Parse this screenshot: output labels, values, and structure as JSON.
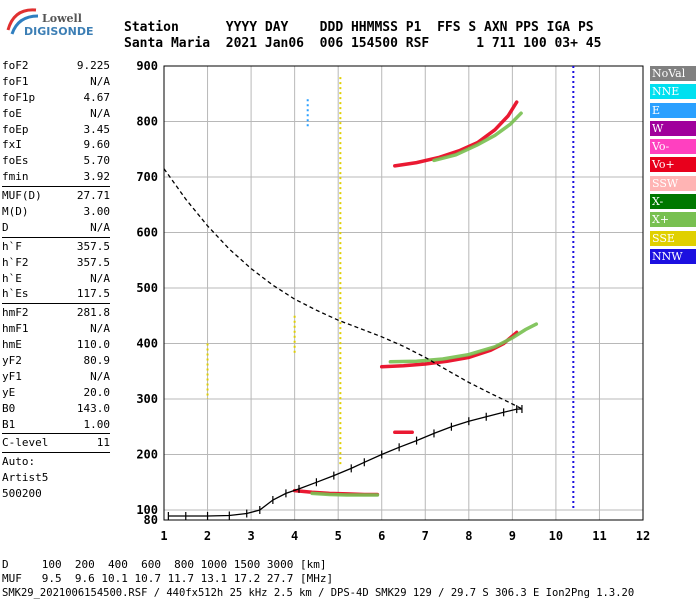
{
  "logo": {
    "line1": "Lowell",
    "line2": "DIGISONDE"
  },
  "header": {
    "line1": "Station      YYYY DAY    DDD HHMMSS P1  FFS S AXN PPS IGA PS",
    "line2": "Santa Maria  2021 Jan06  006 154500 RSF      1 711 100 03+ 45"
  },
  "params": [
    {
      "label": "foF2",
      "value": "9.225"
    },
    {
      "label": "foF1",
      "value": "N/A"
    },
    {
      "label": "foF1p",
      "value": "4.67"
    },
    {
      "label": "foE",
      "value": "N/A"
    },
    {
      "label": "foEp",
      "value": "3.45"
    },
    {
      "label": "fxI",
      "value": "9.60"
    },
    {
      "label": "foEs",
      "value": "5.70"
    },
    {
      "label": "fmin",
      "value": "3.92"
    },
    {
      "sep": true
    },
    {
      "label": "MUF(D)",
      "value": "27.71"
    },
    {
      "label": "M(D)",
      "value": "3.00"
    },
    {
      "label": "D",
      "value": "N/A"
    },
    {
      "sep": true
    },
    {
      "label": "h`F",
      "value": "357.5"
    },
    {
      "label": "h`F2",
      "value": "357.5"
    },
    {
      "label": "h`E",
      "value": "N/A"
    },
    {
      "label": "h`Es",
      "value": "117.5"
    },
    {
      "sep": true
    },
    {
      "label": "hmF2",
      "value": "281.8"
    },
    {
      "label": "hmF1",
      "value": "N/A"
    },
    {
      "label": "hmE",
      "value": "110.0"
    },
    {
      "label": "yF2",
      "value": "80.9"
    },
    {
      "label": "yF1",
      "value": "N/A"
    },
    {
      "label": "yE",
      "value": "20.0"
    },
    {
      "label": "B0",
      "value": "143.0"
    },
    {
      "label": "B1",
      "value": "1.00"
    },
    {
      "sep": true
    },
    {
      "label": "C-level",
      "value": "11"
    },
    {
      "sep": true
    },
    {
      "text": "Auto:"
    },
    {
      "text": "Artist5"
    },
    {
      "text": "500200"
    }
  ],
  "legend": [
    {
      "label": "NoVal",
      "color": "#808080"
    },
    {
      "label": "NNE",
      "color": "#00e0f0"
    },
    {
      "label": "E",
      "color": "#2aa0ff"
    },
    {
      "label": "W",
      "color": "#a0009c"
    },
    {
      "label": "Vo-",
      "color": "#ff40c0"
    },
    {
      "label": "Vo+",
      "color": "#e8001c"
    },
    {
      "label": "SSW",
      "color": "#ffb4b4"
    },
    {
      "label": "X-",
      "color": "#007800"
    },
    {
      "label": "X+",
      "color": "#78c050"
    },
    {
      "label": "SSE",
      "color": "#e0d000"
    },
    {
      "label": "NNW",
      "color": "#1c10e0"
    }
  ],
  "footer": {
    "line1": "D     100  200  400  600  800 1000 1500 3000 [km]",
    "line2": "MUF   9.5  9.6 10.1 10.7 11.7 13.1 17.2 27.7 [MHz]",
    "line3": "SMK29_2021006154500.RSF / 440fx512h 25 kHz 2.5 km / DPS-4D SMK29 129 / 29.7 S 306.3 E Ion2Png 1.3.20"
  },
  "chart_data": {
    "type": "scatter",
    "x_ticks": [
      "1",
      "2",
      "3",
      "4",
      "5",
      "6",
      "7",
      "8",
      "9",
      "10",
      "11",
      "12"
    ],
    "y_ticks": [
      "80",
      "100",
      "200",
      "300",
      "400",
      "500",
      "600",
      "700",
      "800",
      "900"
    ],
    "xlim": [
      1,
      12
    ],
    "ylim": [
      80,
      900
    ],
    "grid": true,
    "colors": {
      "Vo+": "#e8001c",
      "X+": "#78c050",
      "W": "#a0009c",
      "X-": "#007800",
      "E": "#2aa0ff",
      "NNW": "#1c10e0",
      "SSE": "#e0d000",
      "profile": "#000000"
    },
    "series": [
      {
        "name": "Vo+",
        "points": [
          [
            6.0,
            358
          ],
          [
            6.5,
            360
          ],
          [
            7.0,
            363
          ],
          [
            7.5,
            368
          ],
          [
            8.0,
            375
          ],
          [
            8.5,
            388
          ],
          [
            8.8,
            400
          ],
          [
            9.1,
            420
          ]
        ]
      },
      {
        "name": "X+",
        "points": [
          [
            6.2,
            367
          ],
          [
            6.8,
            368
          ],
          [
            7.4,
            372
          ],
          [
            8.0,
            380
          ],
          [
            8.6,
            394
          ],
          [
            9.0,
            410
          ],
          [
            9.3,
            425
          ],
          [
            9.55,
            435
          ]
        ]
      },
      {
        "name": "Vo+",
        "points": [
          [
            6.3,
            720
          ],
          [
            6.8,
            726
          ],
          [
            7.3,
            735
          ],
          [
            7.8,
            748
          ],
          [
            8.2,
            762
          ],
          [
            8.6,
            785
          ],
          [
            8.9,
            810
          ],
          [
            9.1,
            835
          ]
        ]
      },
      {
        "name": "X+",
        "points": [
          [
            7.2,
            730
          ],
          [
            7.7,
            740
          ],
          [
            8.2,
            758
          ],
          [
            8.6,
            775
          ],
          [
            8.95,
            795
          ],
          [
            9.2,
            815
          ]
        ]
      },
      {
        "name": "Vo+",
        "points": [
          [
            4.0,
            135
          ],
          [
            4.4,
            132
          ],
          [
            4.8,
            130
          ],
          [
            5.2,
            129
          ],
          [
            5.6,
            128
          ],
          [
            5.9,
            128
          ]
        ]
      },
      {
        "name": "X+",
        "points": [
          [
            4.4,
            130
          ],
          [
            4.8,
            128
          ],
          [
            5.2,
            127
          ],
          [
            5.6,
            127
          ],
          [
            5.9,
            127
          ]
        ]
      },
      {
        "name": "Vo+",
        "points": [
          [
            6.3,
            240
          ],
          [
            6.5,
            240
          ],
          [
            6.7,
            240
          ]
        ]
      }
    ],
    "trace_profile": [
      [
        1.1,
        88
      ],
      [
        1.5,
        88
      ],
      [
        2.0,
        88
      ],
      [
        2.5,
        89
      ],
      [
        2.9,
        93
      ],
      [
        3.2,
        100
      ],
      [
        3.5,
        118
      ],
      [
        3.8,
        130
      ],
      [
        4.1,
        138
      ],
      [
        4.5,
        150
      ],
      [
        4.9,
        162
      ],
      [
        5.3,
        175
      ],
      [
        5.6,
        186
      ],
      [
        6.0,
        200
      ],
      [
        6.4,
        213
      ],
      [
        6.8,
        225
      ],
      [
        7.2,
        238
      ],
      [
        7.6,
        250
      ],
      [
        8.0,
        260
      ],
      [
        8.4,
        268
      ],
      [
        8.8,
        276
      ],
      [
        9.1,
        281.8
      ],
      [
        9.22,
        282
      ]
    ],
    "true_height_profile": [
      [
        1.0,
        715
      ],
      [
        1.5,
        660
      ],
      [
        2.0,
        612
      ],
      [
        2.5,
        570
      ],
      [
        3.0,
        535
      ],
      [
        3.5,
        505
      ],
      [
        4.0,
        480
      ],
      [
        4.5,
        460
      ],
      [
        5.0,
        442
      ],
      [
        5.5,
        427
      ],
      [
        6.0,
        412
      ],
      [
        6.5,
        395
      ],
      [
        7.0,
        375
      ],
      [
        7.5,
        352
      ],
      [
        8.0,
        330
      ],
      [
        8.5,
        310
      ],
      [
        8.9,
        295
      ],
      [
        9.15,
        285
      ],
      [
        9.225,
        281.8
      ]
    ],
    "vertical_streaks": [
      {
        "x": 10.4,
        "from": 100,
        "to": 900,
        "name": "NNW"
      },
      {
        "x": 5.05,
        "from": 180,
        "to": 880,
        "name": "SSE"
      },
      {
        "x": 4.0,
        "from": 380,
        "to": 450,
        "name": "SSE"
      },
      {
        "x": 2.0,
        "from": 300,
        "to": 400,
        "name": "SSE"
      },
      {
        "x": 4.3,
        "from": 790,
        "to": 840,
        "name": "E"
      }
    ]
  }
}
